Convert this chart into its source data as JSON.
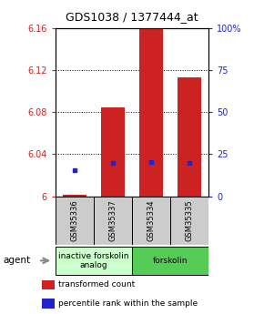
{
  "title": "GDS1038 / 1377444_at",
  "samples": [
    "GSM35336",
    "GSM35337",
    "GSM35334",
    "GSM35335"
  ],
  "bar_values": [
    6.001,
    6.085,
    6.16,
    6.113
  ],
  "percentile_values": [
    6.025,
    6.032,
    6.033,
    6.032
  ],
  "bar_color": "#cc2222",
  "percentile_color": "#2222cc",
  "ylim_left": [
    6.0,
    6.16
  ],
  "yticks_left": [
    6.0,
    6.04,
    6.08,
    6.12,
    6.16
  ],
  "ytick_labels_left": [
    "6",
    "6.04",
    "6.08",
    "6.12",
    "6.16"
  ],
  "yticks_right": [
    0,
    25,
    50,
    75,
    100
  ],
  "ytick_labels_right": [
    "0",
    "25",
    "50",
    "75",
    "100%"
  ],
  "groups": [
    {
      "label": "inactive forskolin\nanalog",
      "samples": [
        0,
        1
      ],
      "color": "#ccffcc"
    },
    {
      "label": "forskolin",
      "samples": [
        2,
        3
      ],
      "color": "#55cc55"
    }
  ],
  "agent_label": "agent",
  "bar_width": 0.6,
  "legend_items": [
    {
      "color": "#cc2222",
      "label": "transformed count"
    },
    {
      "color": "#2222cc",
      "label": "percentile rank within the sample"
    }
  ],
  "background_color": "#ffffff",
  "tick_color_left": "#cc2222",
  "tick_color_right": "#2222cc",
  "sample_box_color": "#cccccc",
  "base_value": 6.0
}
